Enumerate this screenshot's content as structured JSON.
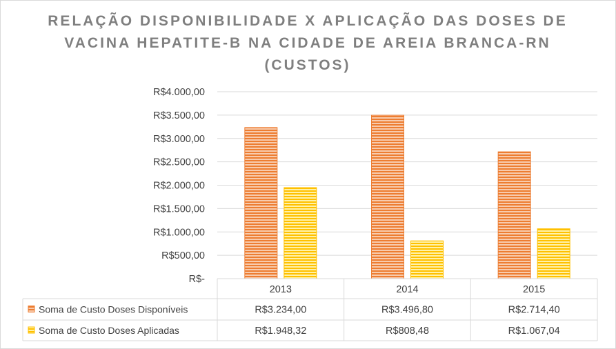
{
  "title": "RELAÇÃO DISPONIBILIDADE X APLICAÇÃO DAS DOSES DE VACINA HEPATITE-B NA CIDADE DE AREIA BRANCA-RN (CUSTOS)",
  "colors": {
    "series1": "#ed7d31",
    "series1_stripe": "#f8cbad",
    "series2": "#ffc000",
    "series2_stripe": "#fff2a8",
    "grid": "#d9d9d9",
    "text": "#404040",
    "title": "#7f7f7f"
  },
  "chart_data": {
    "type": "bar",
    "title": "RELAÇÃO DISPONIBILIDADE X APLICAÇÃO DAS DOSES DE VACINA HEPATITE-B NA CIDADE DE AREIA BRANCA-RN (CUSTOS)",
    "categories": [
      "2013",
      "2014",
      "2015"
    ],
    "series": [
      {
        "name": "Soma de Custo Doses Disponíveis",
        "values": [
          3234.0,
          3496.8,
          2714.4
        ],
        "labels": [
          "R$3.234,00",
          "R$3.496,80",
          "R$2.714,40"
        ]
      },
      {
        "name": "Soma de Custo Doses Aplicadas",
        "values": [
          1948.32,
          808.48,
          1067.04
        ],
        "labels": [
          "R$1.948,32",
          "R$808,48",
          "R$1.067,04"
        ]
      }
    ],
    "yticks": [
      "R$-",
      "R$500,00",
      "R$1.000,00",
      "R$1.500,00",
      "R$2.000,00",
      "R$2.500,00",
      "R$3.000,00",
      "R$3.500,00",
      "R$4.000,00"
    ],
    "ylim": [
      0,
      4000
    ],
    "grid": true,
    "legend": "data-table-below"
  }
}
